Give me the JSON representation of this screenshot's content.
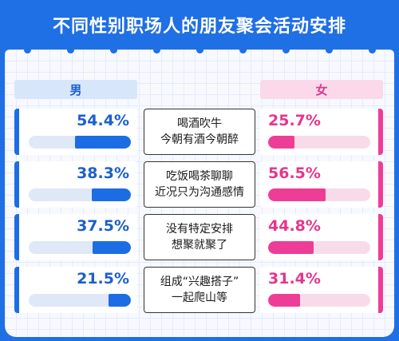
{
  "title": "不同性别职场人的朋友聚会活动安排",
  "colors": {
    "frame": "#1f6fe5",
    "male_accent": "#1c6de4",
    "female_accent": "#ee3d96",
    "male_track": "#dfe8f7",
    "female_track": "#f8dbe9"
  },
  "headers": {
    "male": "男",
    "female": "女"
  },
  "rows": [
    {
      "activity_line1": "喝酒吹牛",
      "activity_line2": "今朝有酒今朝醉",
      "male": "54.4%",
      "female": "25.7%"
    },
    {
      "activity_line1": "吃饭喝茶聊聊",
      "activity_line2": "近况只为沟通感情",
      "male": "38.3%",
      "female": "56.5%"
    },
    {
      "activity_line1": "没有特定安排",
      "activity_line2": "想聚就聚了",
      "male": "37.5%",
      "female": "44.8%"
    },
    {
      "activity_line1": "组成“兴趣搭子”",
      "activity_line2": "一起爬山等",
      "male": "21.5%",
      "female": "31.4%"
    }
  ],
  "chart_data": {
    "type": "bar",
    "title": "不同性别职场人的朋友聚会活动安排",
    "categories": [
      "喝酒吹牛 今朝有酒今朝醉",
      "吃饭喝茶聊聊 近况只为沟通感情",
      "没有特定安排 想聚就聚了",
      "组成“兴趣搭子” 一起爬山等"
    ],
    "series": [
      {
        "name": "男",
        "values": [
          54.4,
          38.3,
          37.5,
          21.5
        ]
      },
      {
        "name": "女",
        "values": [
          25.7,
          56.5,
          44.8,
          31.4
        ]
      }
    ],
    "ylim": [
      0,
      100
    ],
    "grid": false,
    "legend": "top"
  }
}
